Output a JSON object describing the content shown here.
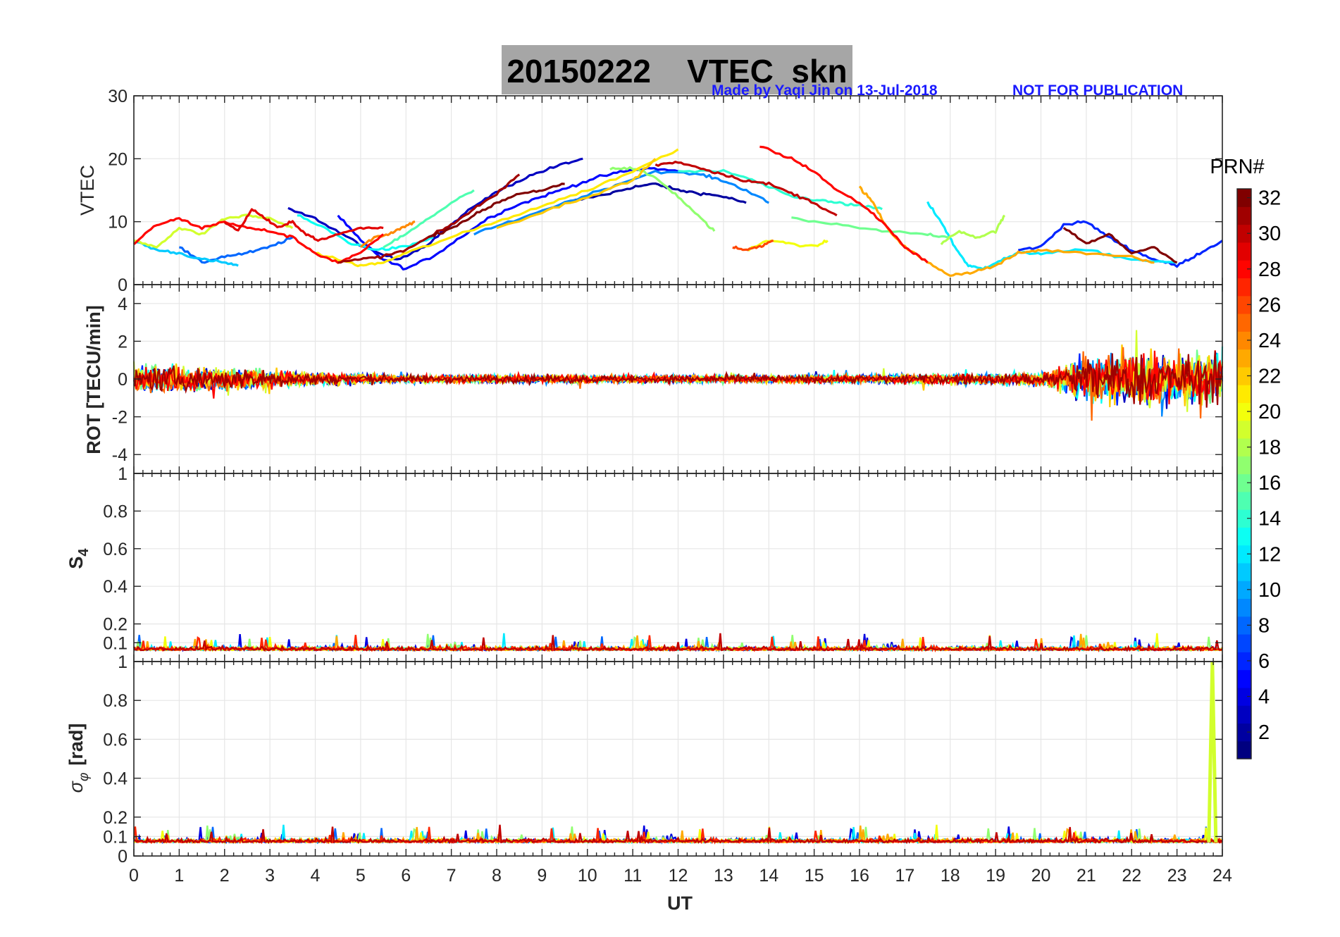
{
  "chart_data": {
    "type": "line",
    "title": "20150222    VTEC  skn",
    "note_left": "Made by Yaqi Jin on 13-Jul-2018",
    "note_right": "NOT FOR PUBLICATION",
    "xlabel": "UT",
    "xlim": [
      0,
      24
    ],
    "xticks": [
      "0",
      "1",
      "2",
      "3",
      "4",
      "5",
      "6",
      "7",
      "8",
      "9",
      "10",
      "11",
      "12",
      "13",
      "14",
      "15",
      "16",
      "17",
      "18",
      "19",
      "20",
      "21",
      "22",
      "23",
      "24"
    ],
    "grid": true,
    "colorbar": {
      "title": "PRN#",
      "range": [
        1,
        32
      ],
      "ticks": [
        "2",
        "4",
        "6",
        "8",
        "10",
        "12",
        "14",
        "16",
        "18",
        "20",
        "22",
        "24",
        "26",
        "28",
        "30",
        "32"
      ],
      "colormap": "jet"
    },
    "panels": [
      {
        "ylabel": "VTEC",
        "ylim": [
          0,
          30
        ],
        "yticks": [
          "0",
          "10",
          "20",
          "30"
        ],
        "series": [
          {
            "prn": 2,
            "x": [
              9.5,
              10.5,
              11,
              11.5,
              12,
              12.5,
              13,
              13.5
            ],
            "y": [
              13.0,
              14.5,
              15.5,
              16.0,
              15.0,
              14.5,
              14.0,
              13.0
            ]
          },
          {
            "prn": 3,
            "x": [
              3.4,
              4.0,
              4.6,
              5.2,
              5.8,
              6.4,
              7.0,
              7.6,
              8.2,
              8.8,
              9.4,
              9.9
            ],
            "y": [
              12.0,
              10.5,
              8.0,
              5.5,
              4.0,
              6.0,
              9.5,
              13.0,
              15.5,
              17.5,
              19.0,
              20.0
            ]
          },
          {
            "prn": 5,
            "x": [
              4.5,
              5.0,
              5.5,
              6.0,
              6.6,
              7.2,
              7.8,
              8.4,
              9.0,
              9.6,
              10.2,
              10.8,
              11.4,
              12.0
            ],
            "y": [
              11.0,
              7.0,
              4.0,
              2.5,
              4.5,
              7.5,
              10.5,
              12.5,
              14.0,
              15.5,
              17.0,
              18.0,
              18.5,
              18.0
            ]
          },
          {
            "prn": 6,
            "x": [
              19.5,
              20.0,
              20.5,
              21.0,
              21.5,
              22.0,
              22.5,
              23.0,
              23.5,
              24.0
            ],
            "y": [
              5.5,
              6.0,
              9.5,
              10.0,
              7.5,
              5.5,
              4.0,
              3.0,
              5.0,
              7.0
            ]
          },
          {
            "prn": 8,
            "x": [
              1.0,
              1.5,
              2.0,
              2.5,
              3.0,
              3.5
            ],
            "y": [
              6.0,
              3.5,
              4.5,
              5.0,
              6.0,
              7.5
            ]
          },
          {
            "prn": 9,
            "x": [
              7.5,
              8.5,
              9.5,
              10.5,
              11.5,
              12.5,
              13.0,
              13.5,
              14.0
            ],
            "y": [
              8.0,
              10.5,
              13.0,
              15.5,
              18.0,
              17.5,
              16.5,
              15.0,
              13.0
            ]
          },
          {
            "prn": 11,
            "x": [
              0.0,
              0.5,
              1.0,
              1.5,
              2.0,
              2.3
            ],
            "y": [
              7.0,
              5.5,
              5.0,
              4.0,
              3.5,
              3.0
            ]
          },
          {
            "prn": 12,
            "x": [
              17.5,
              17.8,
              18.1,
              18.4,
              18.7,
              19.0,
              19.5,
              20.0,
              21.0,
              22.0,
              23.0
            ],
            "y": [
              13.0,
              10.0,
              6.0,
              3.0,
              2.5,
              3.5,
              5.0,
              5.0,
              5.5,
              4.0,
              3.5
            ]
          },
          {
            "prn": 13,
            "x": [
              3.6,
              4.2,
              4.8,
              5.4,
              6.0,
              6.6
            ],
            "y": [
              11.0,
              9.0,
              6.5,
              5.5,
              6.0,
              7.5
            ]
          },
          {
            "prn": 14,
            "x": [
              12.0,
              13.0,
              13.5,
              14.0,
              14.5,
              15.0,
              15.5,
              16.0,
              16.5
            ],
            "y": [
              18.0,
              18.0,
              17.0,
              15.5,
              14.0,
              13.5,
              13.0,
              12.5,
              12.0
            ]
          },
          {
            "prn": 15,
            "x": [
              5.5,
              6.0,
              6.5,
              7.0,
              7.5
            ],
            "y": [
              6.0,
              8.0,
              10.5,
              13.0,
              15.0
            ]
          },
          {
            "prn": 16,
            "x": [
              14.5,
              15.5,
              16.5,
              17.5,
              18.0
            ],
            "y": [
              10.5,
              9.5,
              8.5,
              8.0,
              7.5
            ]
          },
          {
            "prn": 17,
            "x": [
              10.5,
              11.0,
              11.5,
              12.0,
              12.5,
              12.8
            ],
            "y": [
              18.5,
              18.5,
              17.0,
              14.0,
              10.5,
              8.5
            ]
          },
          {
            "prn": 18,
            "x": [
              17.8,
              18.2,
              18.6,
              19.0,
              19.2
            ],
            "y": [
              6.5,
              8.5,
              7.5,
              8.5,
              11.0
            ]
          },
          {
            "prn": 19,
            "x": [
              0.0,
              0.5,
              1.0,
              1.5,
              2.0,
              2.5,
              3.0,
              3.5
            ],
            "y": [
              7.0,
              6.0,
              9.0,
              8.0,
              10.5,
              11.0,
              10.5,
              9.0
            ]
          },
          {
            "prn": 20,
            "x": [
              13.5,
              14.0,
              14.5,
              15.0,
              15.3
            ],
            "y": [
              5.5,
              7.0,
              6.5,
              6.0,
              7.0
            ]
          },
          {
            "prn": 21,
            "x": [
              4.0,
              4.5,
              5.0,
              5.5,
              6.0,
              7.0,
              8.0,
              9.0,
              10.0,
              11.0,
              12.0
            ],
            "y": [
              5.0,
              4.0,
              3.0,
              3.5,
              5.0,
              7.5,
              10.0,
              12.5,
              15.0,
              18.0,
              21.5
            ]
          },
          {
            "prn": 22,
            "x": [
              8.0,
              9.0,
              10.0,
              11.0,
              11.5
            ],
            "y": [
              9.0,
              11.5,
              14.0,
              16.5,
              20.0
            ]
          },
          {
            "prn": 23,
            "x": [
              16.0,
              16.3,
              16.6,
              17.0,
              17.5,
              18.0,
              18.5,
              19.0,
              19.5,
              20.0,
              21.0,
              22.0,
              22.5
            ],
            "y": [
              15.5,
              13.0,
              9.0,
              6.0,
              3.5,
              1.5,
              2.0,
              3.0,
              5.0,
              5.5,
              5.0,
              4.5,
              3.5
            ]
          },
          {
            "prn": 24,
            "x": [
              5.0,
              5.3,
              5.6,
              5.9,
              6.2
            ],
            "y": [
              6.0,
              7.5,
              8.0,
              9.0,
              10.0
            ]
          },
          {
            "prn": 26,
            "x": [
              13.2,
              13.5,
              13.8,
              14.1
            ],
            "y": [
              6.0,
              5.5,
              6.0,
              7.0
            ]
          },
          {
            "prn": 28,
            "x": [
              0.0,
              0.5,
              1.0,
              1.5,
              2.0,
              2.5,
              3.0,
              3.5,
              4.0,
              4.5,
              5.0,
              5.5
            ],
            "y": [
              6.5,
              9.5,
              10.5,
              9.0,
              10.0,
              9.0,
              8.5,
              7.5,
              5.0,
              3.5,
              5.0,
              8.0
            ]
          },
          {
            "prn": 28,
            "x": [
              13.8,
              14.5,
              15.0,
              15.5,
              16.0,
              16.5,
              17.0,
              17.5
            ],
            "y": [
              22.0,
              20.0,
              18.0,
              15.0,
              13.0,
              10.0,
              6.0,
              3.5
            ]
          },
          {
            "prn": 29,
            "x": [
              2.0,
              2.3,
              2.6,
              2.9,
              3.2,
              3.5,
              3.8,
              4.1,
              4.5,
              5.0,
              5.5
            ],
            "y": [
              10.0,
              8.5,
              12.0,
              10.5,
              9.0,
              10.0,
              8.0,
              7.0,
              8.0,
              9.0,
              9.0
            ]
          },
          {
            "prn": 30,
            "x": [
              11.5,
              12.0,
              12.5,
              13.0,
              13.5,
              14.0,
              14.5,
              15.0,
              15.5
            ],
            "y": [
              19.0,
              19.5,
              18.5,
              17.5,
              16.5,
              16.0,
              14.5,
              13.0,
              11.0
            ]
          },
          {
            "prn": 31,
            "x": [
              4.5,
              5.0,
              5.5,
              6.0,
              6.5,
              7.0,
              7.5,
              8.0,
              8.5
            ],
            "y": [
              3.5,
              4.0,
              4.5,
              5.5,
              7.5,
              9.5,
              12.0,
              14.5,
              17.5
            ]
          },
          {
            "prn": 32,
            "x": [
              6.5,
              7.0,
              7.5,
              8.0,
              8.5,
              9.0,
              9.5
            ],
            "y": [
              7.5,
              9.0,
              11.0,
              13.0,
              14.5,
              15.0,
              16.0
            ]
          },
          {
            "prn": 32,
            "x": [
              20.5,
              21.0,
              21.5,
              22.0,
              22.5,
              23.0
            ],
            "y": [
              9.0,
              6.5,
              8.0,
              5.0,
              6.0,
              3.5
            ]
          }
        ]
      },
      {
        "ylabel": "ROT [TECU/min]",
        "ylim": [
          -5,
          5
        ],
        "yticks": [
          "-4",
          "-2",
          "0",
          "2",
          "4"
        ],
        "style": "noisy-around-zero",
        "envelope": {
          "x": [
            0,
            2,
            4,
            6,
            8,
            10,
            12,
            14,
            16,
            18,
            20,
            21,
            22,
            23,
            24
          ],
          "amplitude": [
            1.0,
            0.9,
            0.5,
            0.3,
            0.3,
            0.3,
            0.3,
            0.3,
            0.3,
            0.4,
            0.5,
            1.8,
            2.2,
            1.8,
            2.0
          ]
        }
      },
      {
        "ylabel": "S",
        "ylabel_sub": "4",
        "ylim": [
          0,
          1
        ],
        "yticks": [
          "0.1",
          "0.2",
          "0.4",
          "0.6",
          "0.8",
          "1"
        ],
        "style": "noisy-baseline",
        "baseline": 0.06
      },
      {
        "ylabel": "σ",
        "ylabel_sub": "φ",
        "ylabel_rest": "[rad]",
        "ylim": [
          0,
          1
        ],
        "yticks": [
          "0",
          "0.1",
          "0.2",
          "0.4",
          "0.6",
          "0.8",
          "1"
        ],
        "style": "noisy-baseline",
        "baseline": 0.07,
        "spike": {
          "x": 23.78,
          "y": 1.0
        }
      }
    ]
  }
}
